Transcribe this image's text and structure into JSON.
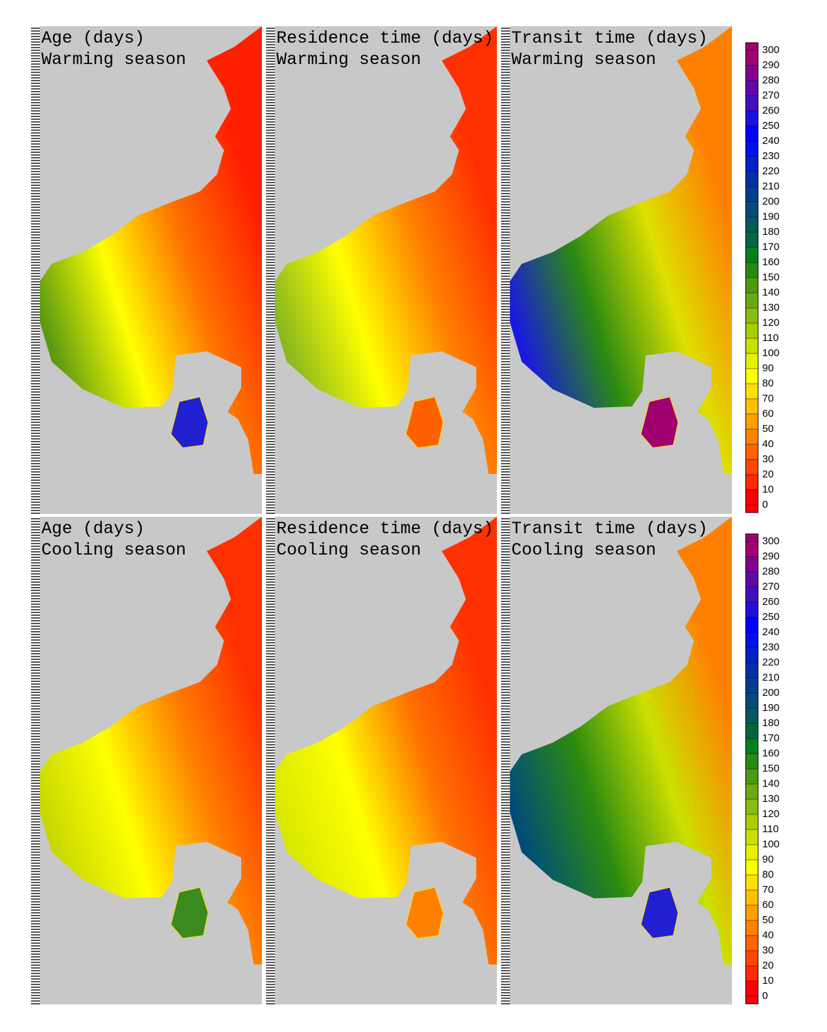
{
  "panels": [
    {
      "title": "Age (days)",
      "subtitle": "Warming season"
    },
    {
      "title": "Residence time (days)",
      "subtitle": "Warming season"
    },
    {
      "title": "Transit time (days)",
      "subtitle": "Warming season"
    },
    {
      "title": "Age (days)",
      "subtitle": "Cooling season"
    },
    {
      "title": "Residence time (days)",
      "subtitle": "Cooling season"
    },
    {
      "title": "Transit time (days)",
      "subtitle": "Cooling season"
    }
  ],
  "colorbars": [
    {
      "ticks": [
        0,
        10,
        20,
        30,
        40,
        50,
        60,
        70,
        80,
        90,
        100,
        110,
        120,
        130,
        140,
        150,
        160,
        170,
        180,
        190,
        200,
        210,
        220,
        230,
        240,
        250,
        260,
        270,
        280,
        290,
        300
      ],
      "colors": [
        "#ff0000",
        "#ff2a00",
        "#ff4600",
        "#ff6400",
        "#ff8200",
        "#ffa000",
        "#ffc000",
        "#ffe000",
        "#ffff00",
        "#e6f000",
        "#cce000",
        "#a8d000",
        "#88be10",
        "#6aaa10",
        "#4c9a10",
        "#2a8a10",
        "#008020",
        "#006840",
        "#005a60",
        "#004c78",
        "#003e90",
        "#0030a8",
        "#0020c8",
        "#0010e8",
        "#0000ff",
        "#2010e0",
        "#4010c0",
        "#6008a8",
        "#800090",
        "#a00070"
      ]
    },
    {
      "ticks": [
        0,
        10,
        20,
        30,
        40,
        50,
        60,
        70,
        80,
        90,
        100,
        110,
        120,
        130,
        140,
        150,
        160,
        170,
        180,
        190,
        200,
        210,
        220,
        230,
        240,
        250,
        260,
        270,
        280,
        290,
        300
      ],
      "colors": [
        "#ff0000",
        "#ff2a00",
        "#ff4600",
        "#ff6400",
        "#ff8200",
        "#ffa000",
        "#ffc000",
        "#ffe000",
        "#ffff00",
        "#e6f000",
        "#cce000",
        "#a8d000",
        "#88be10",
        "#6aaa10",
        "#4c9a10",
        "#2a8a10",
        "#008020",
        "#006840",
        "#005a60",
        "#004c78",
        "#003e90",
        "#0030a8",
        "#0020c8",
        "#0010e8",
        "#0000ff",
        "#2010e0",
        "#4010c0",
        "#6008a8",
        "#800090",
        "#a00070"
      ]
    }
  ]
}
